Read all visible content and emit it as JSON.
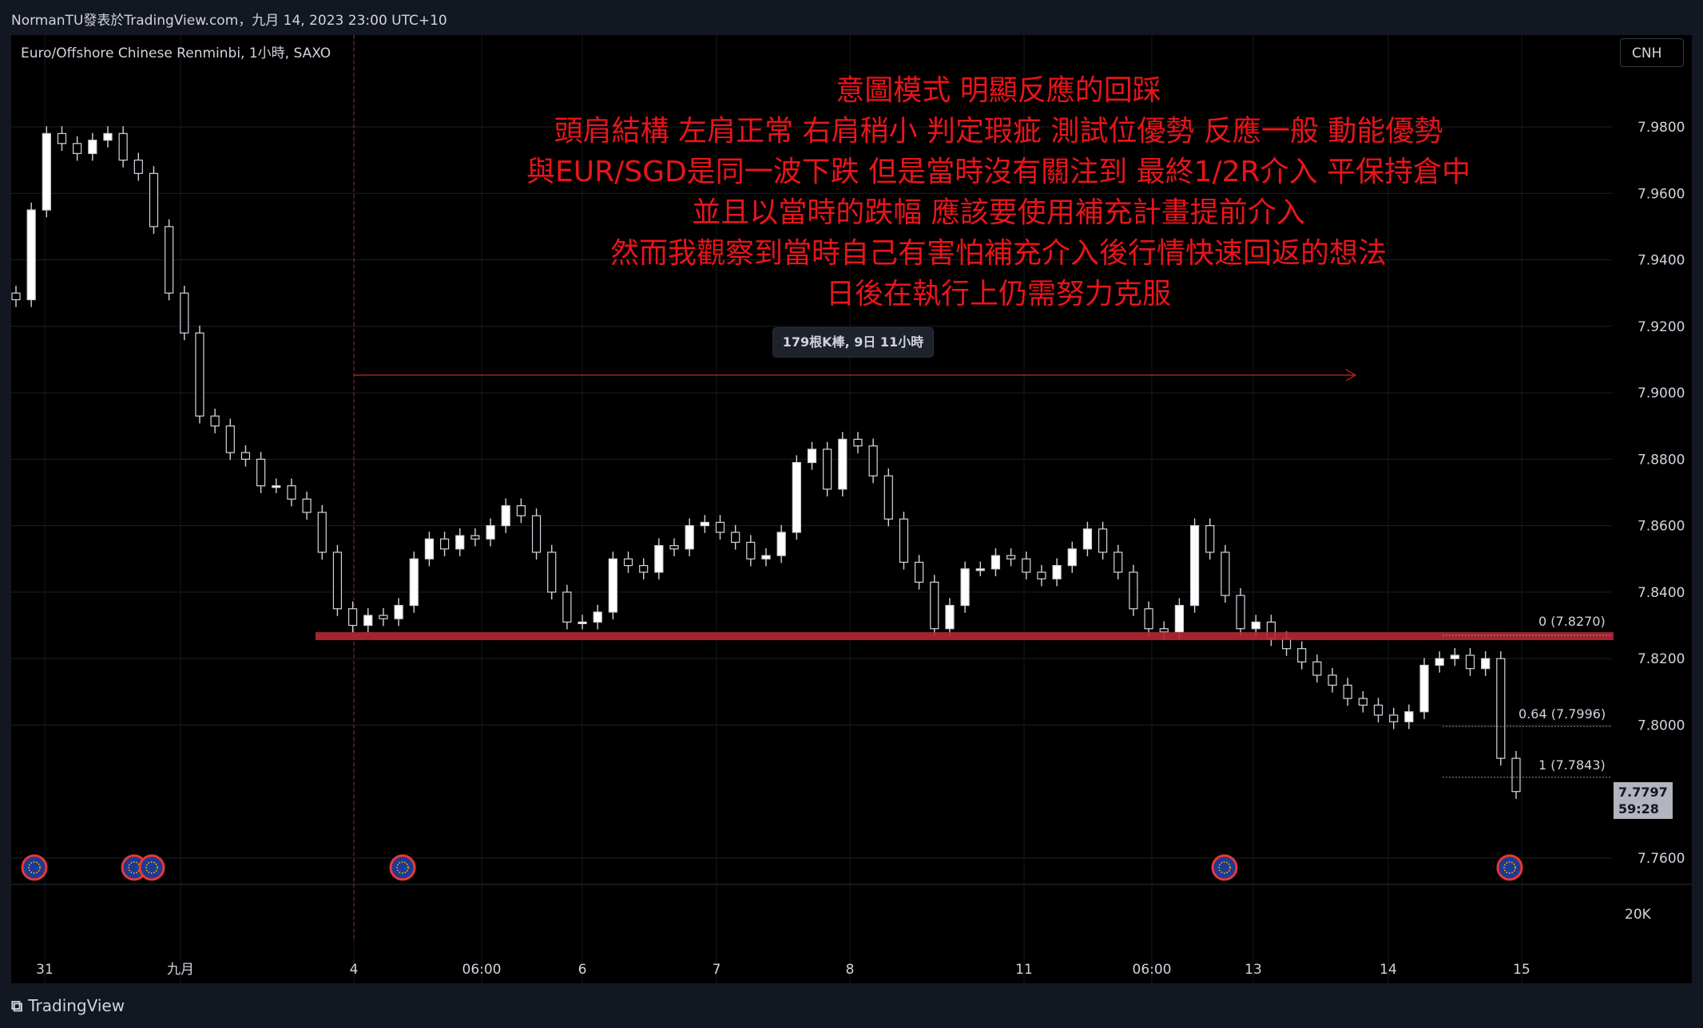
{
  "header": {
    "publisher_line": "NormanTU發表於TradingView.com，九月 14, 2023 23:00 UTC+10"
  },
  "symbol": {
    "title": "Euro/Offshore Chinese Renminbi, 1小時, SAXO",
    "currency_button": "CNH"
  },
  "notes": {
    "lines": [
      "意圖模式 明顯反應的回踩",
      "頭肩結構 左肩正常 右肩稍小 判定瑕疵 測試位優勢 反應一般 動能優勢",
      "與EUR/SGD是同一波下跌 但是當時沒有關注到 最終1/2R介入 平保持倉中",
      "並且以當時的跌幅 應該要使用補充計畫提前介入",
      "然而我觀察到當時自己有害怕補充介入後行情快速回返的想法",
      "日後在執行上仍需努力克服"
    ],
    "color": "#e8151a"
  },
  "range_badge": "179根K棒, 9日 11小時",
  "current_price": {
    "price": "7.7797",
    "countdown": "59:28"
  },
  "fib_levels": [
    {
      "label": "0 (7.8270)",
      "value": 7.827
    },
    {
      "label": "0.64 (7.7996)",
      "value": 7.7996
    },
    {
      "label": "1 (7.7843)",
      "value": 7.7843
    }
  ],
  "support_zone": {
    "value": 7.827,
    "color": "#b22833"
  },
  "footer": {
    "brand": "TradingView"
  },
  "chart_data": {
    "type": "candlestick",
    "y_axis": {
      "ticks": [
        "7.9800",
        "7.9600",
        "7.9400",
        "7.9200",
        "7.9000",
        "7.8800",
        "7.8600",
        "7.8400",
        "7.8200",
        "7.8000",
        "7.7600"
      ],
      "range": [
        7.751,
        7.993
      ]
    },
    "volume_axis_label": "20K",
    "x_axis": {
      "ticks": [
        "31",
        "九月",
        "4",
        "06:00",
        "6",
        "7",
        "8",
        "11",
        "06:00",
        "13",
        "14",
        "15"
      ]
    },
    "series": [
      {
        "name": "EUR/CNH",
        "close_path": [
          7.928,
          7.955,
          7.978,
          7.975,
          7.972,
          7.976,
          7.978,
          7.97,
          7.966,
          7.95,
          7.93,
          7.918,
          7.893,
          7.89,
          7.882,
          7.88,
          7.872,
          7.872,
          7.868,
          7.864,
          7.852,
          7.835,
          7.83,
          7.833,
          7.832,
          7.836,
          7.85,
          7.856,
          7.853,
          7.857,
          7.856,
          7.86,
          7.866,
          7.863,
          7.852,
          7.84,
          7.831,
          7.831,
          7.834,
          7.85,
          7.848,
          7.846,
          7.854,
          7.853,
          7.86,
          7.861,
          7.858,
          7.855,
          7.85,
          7.851,
          7.858,
          7.879,
          7.883,
          7.871,
          7.886,
          7.884,
          7.875,
          7.862,
          7.849,
          7.843,
          7.829,
          7.836,
          7.847,
          7.847,
          7.851,
          7.85,
          7.846,
          7.844,
          7.848,
          7.853,
          7.859,
          7.852,
          7.846,
          7.835,
          7.829,
          7.828,
          7.836,
          7.86,
          7.852,
          7.839,
          7.829,
          7.831,
          7.826,
          7.823,
          7.819,
          7.815,
          7.812,
          7.808,
          7.806,
          7.803,
          7.801,
          7.804,
          7.818,
          7.82,
          7.821,
          7.817,
          7.82,
          7.79,
          7.78
        ]
      }
    ]
  }
}
